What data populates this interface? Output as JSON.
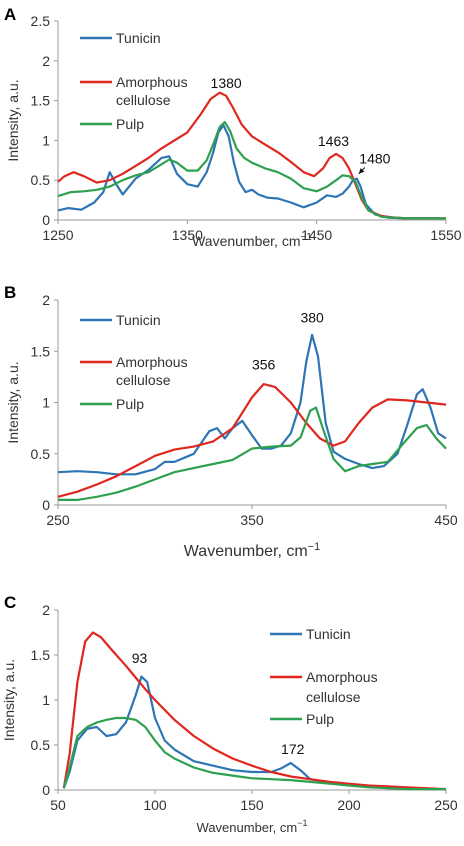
{
  "colors": {
    "Tunicin": "#2e75b6",
    "Amorphous cellulose": "#e0271f",
    "Pulp": "#2fa04f"
  },
  "chart_data": [
    {
      "panel": "A",
      "type": "line",
      "xlabel": "Wavenumber, cm",
      "xlabel_sup": "−1",
      "ylabel": "Intensity, a.u.",
      "xlim": [
        1250,
        1550
      ],
      "ylim": [
        0,
        2.5
      ],
      "xticks": [
        "1250",
        "1350",
        "1450",
        "1550"
      ],
      "yticks": [
        "0",
        "0.5",
        "1",
        "1.5",
        "2",
        "2.5"
      ],
      "legend": [
        "Tunicin",
        "Amorphous cellulose",
        "Pulp"
      ],
      "series": [
        {
          "name": "Tunicin",
          "x": [
            1250,
            1258,
            1268,
            1278,
            1285,
            1290,
            1295,
            1300,
            1310,
            1320,
            1330,
            1336,
            1342,
            1350,
            1358,
            1365,
            1370,
            1374,
            1378,
            1382,
            1386,
            1390,
            1395,
            1400,
            1405,
            1412,
            1420,
            1430,
            1440,
            1450,
            1458,
            1465,
            1470,
            1475,
            1478,
            1481,
            1484,
            1488,
            1495,
            1505,
            1520,
            1550
          ],
          "y": [
            0.12,
            0.15,
            0.13,
            0.22,
            0.35,
            0.6,
            0.45,
            0.32,
            0.52,
            0.63,
            0.78,
            0.8,
            0.58,
            0.45,
            0.42,
            0.6,
            0.85,
            1.1,
            1.19,
            1.05,
            0.72,
            0.48,
            0.35,
            0.38,
            0.32,
            0.28,
            0.27,
            0.22,
            0.16,
            0.22,
            0.31,
            0.29,
            0.33,
            0.42,
            0.5,
            0.52,
            0.42,
            0.2,
            0.07,
            0.03,
            0.02,
            0.02
          ]
        },
        {
          "name": "Amorphous cellulose",
          "x": [
            1250,
            1255,
            1262,
            1270,
            1280,
            1290,
            1300,
            1310,
            1320,
            1330,
            1340,
            1350,
            1360,
            1368,
            1375,
            1380,
            1385,
            1392,
            1400,
            1410,
            1420,
            1430,
            1440,
            1448,
            1455,
            1460,
            1465,
            1470,
            1475,
            1480,
            1485,
            1490,
            1500,
            1510,
            1520,
            1550
          ],
          "y": [
            0.48,
            0.55,
            0.6,
            0.55,
            0.47,
            0.5,
            0.58,
            0.68,
            0.78,
            0.9,
            1.0,
            1.1,
            1.32,
            1.52,
            1.6,
            1.56,
            1.42,
            1.2,
            1.05,
            0.95,
            0.85,
            0.73,
            0.6,
            0.55,
            0.65,
            0.78,
            0.83,
            0.78,
            0.65,
            0.45,
            0.25,
            0.12,
            0.05,
            0.03,
            0.02,
            0.02
          ]
        },
        {
          "name": "Pulp",
          "x": [
            1250,
            1260,
            1270,
            1280,
            1290,
            1300,
            1310,
            1320,
            1330,
            1336,
            1342,
            1350,
            1358,
            1365,
            1370,
            1375,
            1379,
            1383,
            1388,
            1394,
            1400,
            1410,
            1420,
            1430,
            1440,
            1450,
            1458,
            1465,
            1470,
            1475,
            1480,
            1485,
            1490,
            1500,
            1520,
            1550
          ],
          "y": [
            0.3,
            0.35,
            0.36,
            0.38,
            0.42,
            0.5,
            0.56,
            0.6,
            0.7,
            0.76,
            0.72,
            0.62,
            0.62,
            0.75,
            0.95,
            1.17,
            1.23,
            1.12,
            0.9,
            0.78,
            0.72,
            0.65,
            0.6,
            0.52,
            0.4,
            0.36,
            0.42,
            0.5,
            0.56,
            0.55,
            0.48,
            0.28,
            0.12,
            0.04,
            0.02,
            0.02
          ]
        }
      ],
      "annotations": [
        {
          "text": "1380",
          "x": 1380,
          "y": 1.66
        },
        {
          "text": "1463",
          "x": 1463,
          "y": 0.93
        },
        {
          "text": "1480",
          "x": 1495,
          "y": 0.71,
          "arrow_to": [
            1481,
            0.53
          ]
        }
      ]
    },
    {
      "panel": "B",
      "type": "line",
      "xlabel": "Wavenumber, cm",
      "xlabel_sup": "−1",
      "ylabel": "Intensity, a.u.",
      "xlim": [
        250,
        450
      ],
      "ylim": [
        0,
        2
      ],
      "xticks": [
        "250",
        "350",
        "450"
      ],
      "yticks": [
        "0",
        "0.5",
        "1",
        "1.5",
        "2"
      ],
      "legend": [
        "Tunicin",
        "Amorphous cellulose",
        "Pulp"
      ],
      "series": [
        {
          "name": "Tunicin",
          "x": [
            250,
            260,
            270,
            280,
            290,
            300,
            305,
            310,
            320,
            328,
            332,
            336,
            340,
            345,
            350,
            355,
            360,
            365,
            370,
            375,
            378,
            381,
            384,
            388,
            392,
            398,
            405,
            412,
            418,
            425,
            430,
            435,
            438,
            442,
            446,
            450
          ],
          "y": [
            0.32,
            0.33,
            0.32,
            0.3,
            0.3,
            0.35,
            0.42,
            0.42,
            0.5,
            0.72,
            0.75,
            0.65,
            0.75,
            0.82,
            0.68,
            0.55,
            0.55,
            0.58,
            0.7,
            1.0,
            1.4,
            1.66,
            1.45,
            0.8,
            0.52,
            0.45,
            0.4,
            0.36,
            0.38,
            0.5,
            0.78,
            1.08,
            1.13,
            0.95,
            0.7,
            0.65
          ]
        },
        {
          "name": "Amorphous cellulose",
          "x": [
            250,
            260,
            270,
            280,
            290,
            300,
            310,
            320,
            330,
            340,
            350,
            356,
            362,
            370,
            378,
            385,
            392,
            398,
            405,
            412,
            420,
            430,
            440,
            450
          ],
          "y": [
            0.08,
            0.13,
            0.2,
            0.28,
            0.38,
            0.48,
            0.54,
            0.57,
            0.62,
            0.75,
            1.05,
            1.18,
            1.15,
            1.0,
            0.8,
            0.65,
            0.58,
            0.62,
            0.8,
            0.95,
            1.03,
            1.02,
            1.0,
            0.98
          ]
        },
        {
          "name": "Pulp",
          "x": [
            250,
            260,
            270,
            280,
            290,
            300,
            310,
            320,
            330,
            340,
            350,
            360,
            370,
            375,
            380,
            383,
            387,
            392,
            398,
            405,
            412,
            420,
            428,
            435,
            440,
            445,
            450
          ],
          "y": [
            0.05,
            0.05,
            0.08,
            0.12,
            0.18,
            0.25,
            0.32,
            0.36,
            0.4,
            0.44,
            0.55,
            0.57,
            0.58,
            0.66,
            0.92,
            0.95,
            0.72,
            0.45,
            0.33,
            0.38,
            0.4,
            0.42,
            0.6,
            0.75,
            0.78,
            0.65,
            0.55
          ]
        }
      ],
      "annotations": [
        {
          "text": "380",
          "x": 381,
          "y": 1.78
        },
        {
          "text": "356",
          "x": 356,
          "y": 1.32
        }
      ]
    },
    {
      "panel": "C",
      "type": "line",
      "xlabel": "Wavenumber, cm",
      "xlabel_sup": "−1",
      "ylabel": "Intensity, a.u.",
      "xlim": [
        50,
        250
      ],
      "ylim": [
        0,
        2
      ],
      "xticks": [
        "50",
        "100",
        "150",
        "200",
        "250"
      ],
      "yticks": [
        "0",
        "0.5",
        "1",
        "1.5",
        "2"
      ],
      "legend": [
        "Tunicin",
        "Amorphous cellulose",
        "Pulp"
      ],
      "series": [
        {
          "name": "Tunicin",
          "x": [
            53,
            56,
            60,
            65,
            70,
            75,
            80,
            85,
            90,
            93,
            96,
            100,
            105,
            110,
            120,
            130,
            140,
            150,
            160,
            165,
            170,
            175,
            180,
            190,
            200,
            210,
            220,
            230,
            240,
            250
          ],
          "y": [
            0.02,
            0.2,
            0.55,
            0.68,
            0.7,
            0.6,
            0.62,
            0.75,
            1.05,
            1.26,
            1.2,
            0.8,
            0.55,
            0.45,
            0.32,
            0.27,
            0.22,
            0.2,
            0.2,
            0.24,
            0.3,
            0.22,
            0.12,
            0.08,
            0.06,
            0.04,
            0.02,
            0.02,
            0.01,
            0.01
          ]
        },
        {
          "name": "Amorphous cellulose",
          "x": [
            53,
            56,
            60,
            64,
            68,
            72,
            78,
            85,
            90,
            95,
            100,
            110,
            120,
            130,
            140,
            150,
            160,
            170,
            180,
            190,
            200,
            210,
            220,
            230,
            240,
            250
          ],
          "y": [
            0.02,
            0.4,
            1.2,
            1.65,
            1.75,
            1.7,
            1.55,
            1.38,
            1.25,
            1.12,
            1.0,
            0.78,
            0.6,
            0.46,
            0.35,
            0.27,
            0.2,
            0.15,
            0.12,
            0.09,
            0.07,
            0.05,
            0.04,
            0.03,
            0.02,
            0.01
          ]
        },
        {
          "name": "Pulp",
          "x": [
            53,
            56,
            60,
            65,
            70,
            75,
            80,
            85,
            90,
            95,
            100,
            105,
            110,
            120,
            130,
            140,
            150,
            160,
            170,
            180,
            190,
            200,
            210,
            220,
            230,
            240,
            250
          ],
          "y": [
            0.02,
            0.25,
            0.6,
            0.7,
            0.75,
            0.78,
            0.8,
            0.8,
            0.78,
            0.7,
            0.55,
            0.42,
            0.35,
            0.25,
            0.19,
            0.16,
            0.13,
            0.12,
            0.11,
            0.09,
            0.07,
            0.05,
            0.03,
            0.02,
            0.01,
            0.01,
            0.01
          ]
        }
      ],
      "annotations": [
        {
          "text": "93",
          "x": 92,
          "y": 1.41
        },
        {
          "text": "172",
          "x": 171,
          "y": 0.4
        }
      ]
    }
  ]
}
